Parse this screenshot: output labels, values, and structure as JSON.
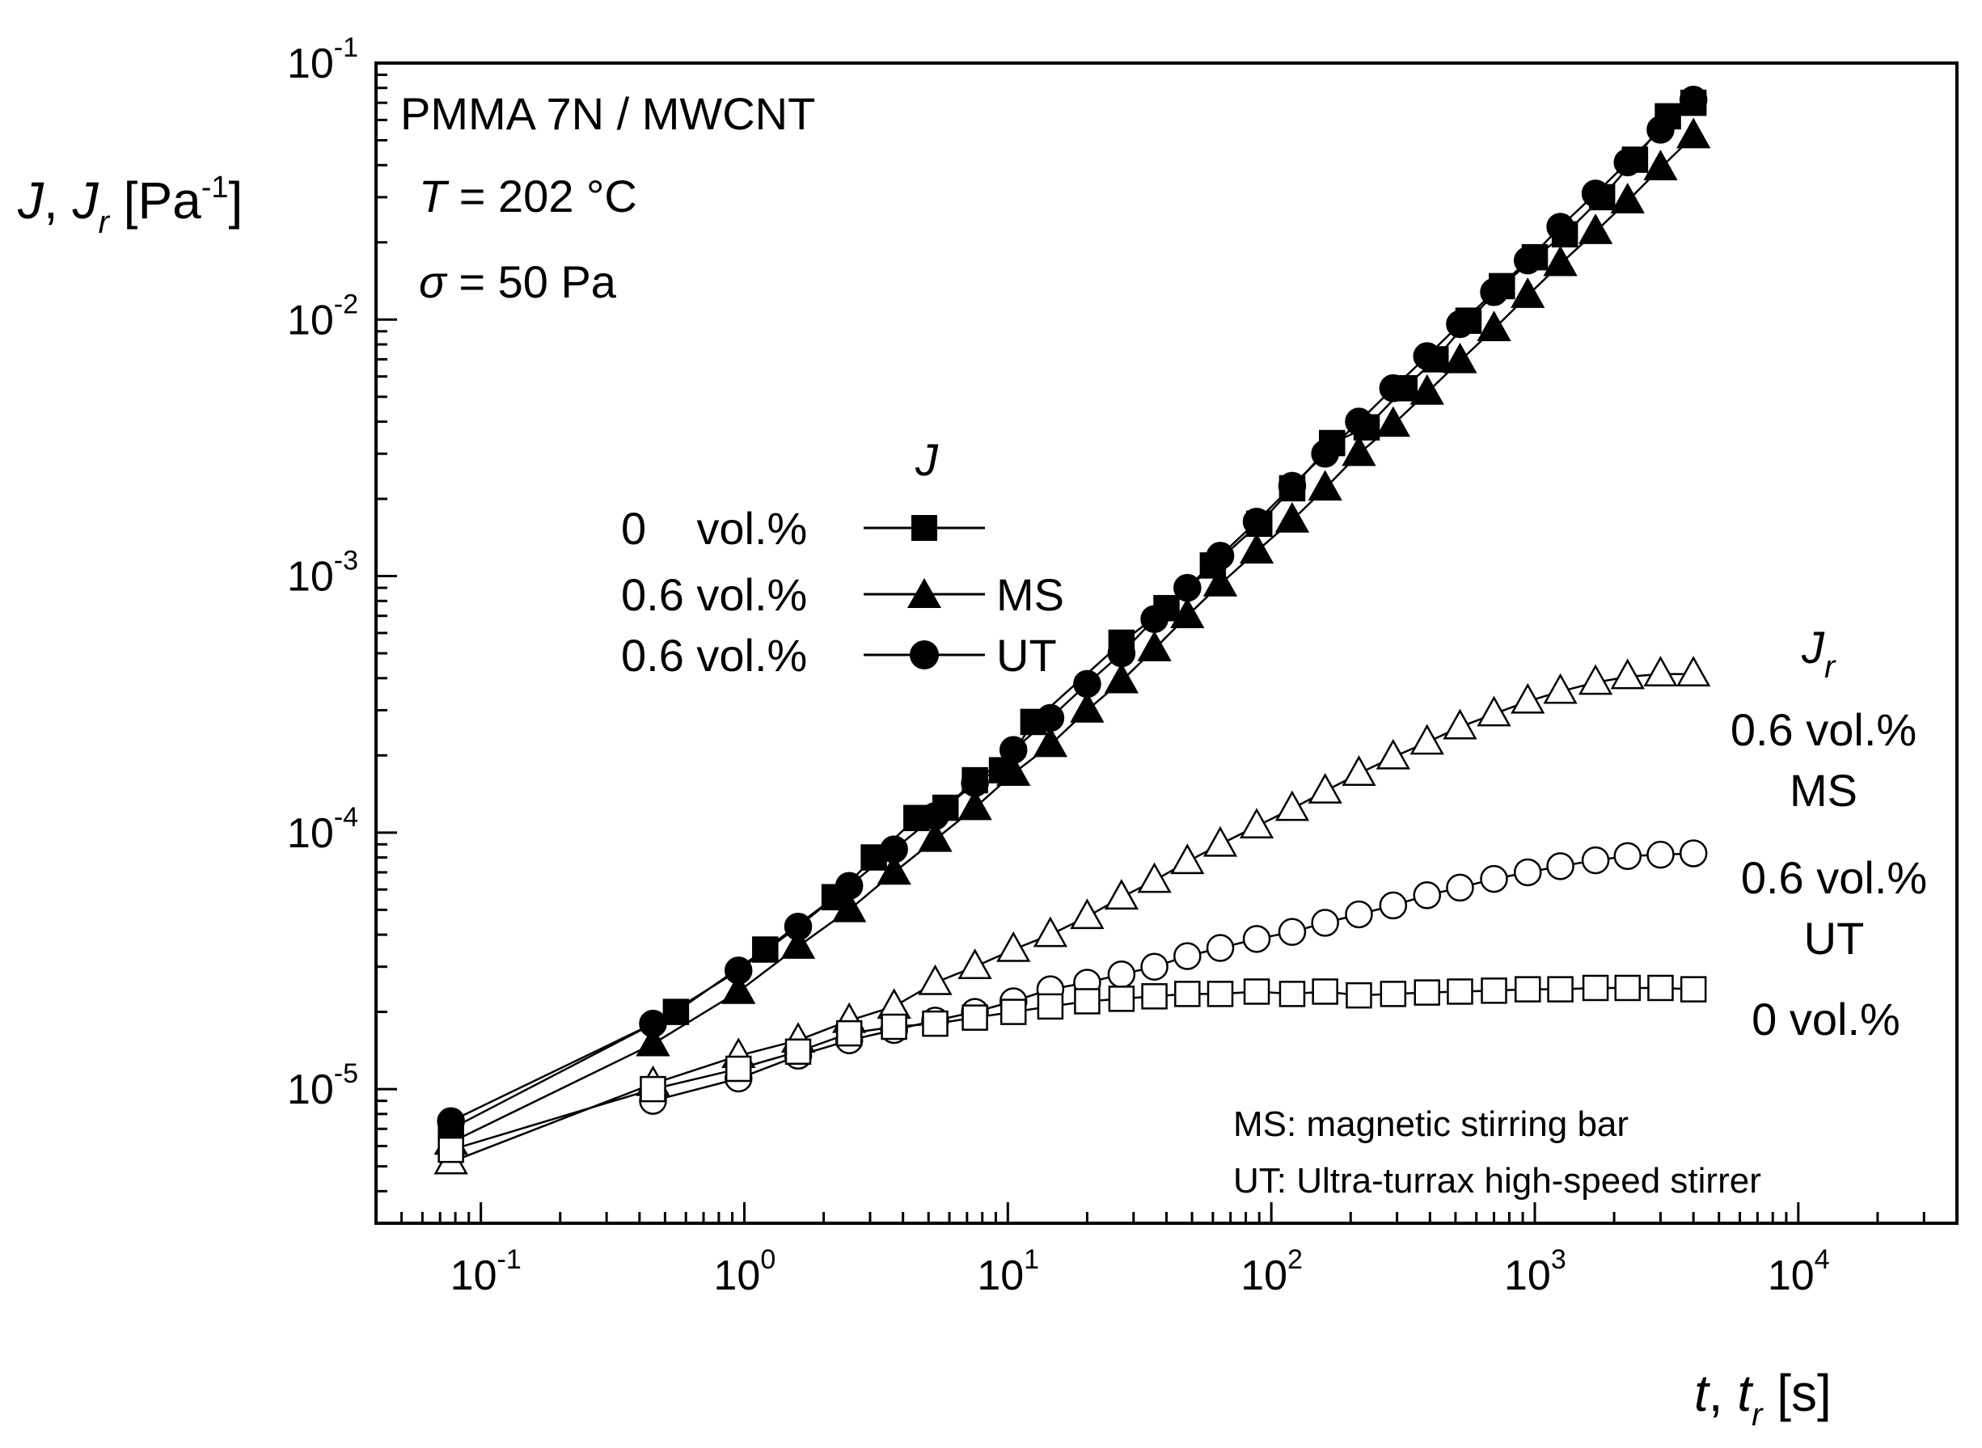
{
  "chart_data": {
    "type": "scatter",
    "xscale": "log",
    "yscale": "log",
    "xlim": [
      0.04,
      40000
    ],
    "ylim": [
      3e-06,
      0.1
    ],
    "x_ticks": [
      {
        "base": "10",
        "exp": "-1",
        "value": 0.1
      },
      {
        "base": "10",
        "exp": "0",
        "value": 1
      },
      {
        "base": "10",
        "exp": "1",
        "value": 10
      },
      {
        "base": "10",
        "exp": "2",
        "value": 100
      },
      {
        "base": "10",
        "exp": "3",
        "value": 1000
      },
      {
        "base": "10",
        "exp": "4",
        "value": 10000
      }
    ],
    "y_ticks": [
      {
        "base": "10",
        "exp": "-5",
        "value": 1e-05
      },
      {
        "base": "10",
        "exp": "-4",
        "value": 0.0001
      },
      {
        "base": "10",
        "exp": "-3",
        "value": 0.001
      },
      {
        "base": "10",
        "exp": "-2",
        "value": 0.01
      },
      {
        "base": "10",
        "exp": "-1",
        "value": 0.1
      }
    ],
    "xlabel": {
      "t1": "t",
      "sep": ", ",
      "t2": "t",
      "sub": "r",
      "unit": " [s]"
    },
    "ylabel": {
      "j1": "J",
      "sep": ", ",
      "j2": "J",
      "sub": "r",
      "unit_open": " [Pa",
      "exp": "-1",
      "unit_close": "]"
    },
    "annotations": {
      "line1": "PMMA 7N / MWCNT",
      "t_sym": "T",
      "t_val": " = 202 °C",
      "s_sym": "σ",
      "s_val": " = 50 Pa"
    },
    "legend": {
      "title": "J",
      "entries": [
        {
          "label": "0    vol.%",
          "suffix": ""
        },
        {
          "label": "0.6 vol.%",
          "suffix": "MS"
        },
        {
          "label": "0.6 vol.%",
          "suffix": "UT"
        }
      ]
    },
    "jr_labels": {
      "title": "J",
      "title_sub": "r",
      "ms_line1": "0.6 vol.%",
      "ms_line2": "MS",
      "ut_line1": "0.6 vol.%",
      "ut_line2": "UT",
      "zero_line1": "0 vol.%"
    },
    "footnotes": {
      "ms": "MS: magnetic stirring bar",
      "ut": "UT: Ultra-turrax high-speed stirrer"
    },
    "series": [
      {
        "name": "J, 0 vol.%",
        "marker": "square",
        "filled": true,
        "x": [
          0.077,
          0.55,
          1.2,
          2.2,
          3.1,
          4.5,
          5.8,
          7.5,
          9.5,
          12.5,
          27,
          40,
          60,
          90,
          120,
          170,
          230,
          320,
          420,
          560,
          750,
          1000,
          1300,
          1800,
          2400,
          3200,
          4000
        ],
        "y": [
          7e-06,
          2e-05,
          3.5e-05,
          5.6e-05,
          8e-05,
          0.000114,
          0.000125,
          0.00016,
          0.000175,
          0.00027,
          0.00055,
          0.00075,
          0.0011,
          0.0016,
          0.0022,
          0.0033,
          0.0038,
          0.0054,
          0.007,
          0.0099,
          0.0135,
          0.0175,
          0.0215,
          0.03,
          0.042,
          0.062,
          0.07
        ]
      },
      {
        "name": "J, 0.6 vol.% MS",
        "marker": "triangle",
        "filled": true,
        "x": [
          0.077,
          0.45,
          0.95,
          1.6,
          2.5,
          3.7,
          5.3,
          7.5,
          10.5,
          14.5,
          20,
          27,
          36,
          48,
          64,
          88,
          120,
          160,
          215,
          290,
          390,
          520,
          700,
          940,
          1250,
          1700,
          2250,
          3000,
          4000
        ],
        "y": [
          6.2e-06,
          1.5e-05,
          2.4e-05,
          3.6e-05,
          5e-05,
          7e-05,
          9.4e-05,
          0.000125,
          0.00017,
          0.00022,
          0.0003,
          0.00039,
          0.00052,
          0.0007,
          0.00093,
          0.00125,
          0.00165,
          0.0022,
          0.003,
          0.0039,
          0.0052,
          0.0069,
          0.0092,
          0.0124,
          0.0165,
          0.022,
          0.029,
          0.039,
          0.052
        ]
      },
      {
        "name": "J, 0.6 vol.% UT",
        "marker": "circle",
        "filled": true,
        "x": [
          0.077,
          0.45,
          0.95,
          1.6,
          2.5,
          3.7,
          5.3,
          7.5,
          10.5,
          14.5,
          20,
          27,
          36,
          48,
          64,
          88,
          120,
          160,
          215,
          290,
          390,
          520,
          700,
          940,
          1250,
          1700,
          2250,
          3000,
          4000
        ],
        "y": [
          7.5e-06,
          1.8e-05,
          2.9e-05,
          4.3e-05,
          6.2e-05,
          8.6e-05,
          0.000116,
          0.000156,
          0.00021,
          0.00028,
          0.00038,
          0.0005,
          0.00068,
          0.0009,
          0.0012,
          0.00163,
          0.00225,
          0.003,
          0.004,
          0.0054,
          0.0072,
          0.0096,
          0.0128,
          0.017,
          0.023,
          0.031,
          0.041,
          0.055,
          0.072
        ]
      },
      {
        "name": "Jr, 0.6 vol.% MS",
        "marker": "triangle",
        "filled": false,
        "x": [
          0.077,
          0.45,
          0.95,
          1.6,
          2.5,
          3.7,
          5.3,
          7.5,
          10.5,
          14.5,
          20,
          27,
          36,
          48,
          64,
          88,
          120,
          160,
          215,
          290,
          390,
          520,
          700,
          940,
          1250,
          1700,
          2250,
          3000,
          4000
        ],
        "y": [
          5.2e-06,
          1.05e-05,
          1.35e-05,
          1.55e-05,
          1.85e-05,
          2.1e-05,
          2.6e-05,
          3e-05,
          3.5e-05,
          4e-05,
          4.7e-05,
          5.6e-05,
          6.5e-05,
          7.7e-05,
          9e-05,
          0.000106,
          0.000124,
          0.000145,
          0.00017,
          0.000197,
          0.000225,
          0.000258,
          0.00029,
          0.000325,
          0.000355,
          0.000385,
          0.000405,
          0.000415,
          0.000415
        ]
      },
      {
        "name": "Jr, 0.6 vol.% UT",
        "marker": "circle",
        "filled": false,
        "x": [
          0.45,
          0.95,
          1.6,
          2.5,
          3.7,
          5.3,
          7.5,
          10.5,
          14.5,
          20,
          27,
          36,
          48,
          64,
          88,
          120,
          160,
          215,
          290,
          390,
          520,
          700,
          940,
          1250,
          1700,
          2250,
          3000,
          4000
        ],
        "y": [
          9e-06,
          1.1e-05,
          1.35e-05,
          1.55e-05,
          1.7e-05,
          1.85e-05,
          2e-05,
          2.2e-05,
          2.45e-05,
          2.6e-05,
          2.8e-05,
          3e-05,
          3.3e-05,
          3.55e-05,
          3.85e-05,
          4.1e-05,
          4.45e-05,
          4.8e-05,
          5.2e-05,
          5.7e-05,
          6.1e-05,
          6.6e-05,
          7e-05,
          7.4e-05,
          7.8e-05,
          8.1e-05,
          8.2e-05,
          8.3e-05
        ]
      },
      {
        "name": "Jr, 0 vol.%",
        "marker": "square",
        "filled": false,
        "x": [
          0.077,
          0.45,
          0.95,
          1.6,
          2.5,
          3.7,
          5.3,
          7.5,
          10.5,
          14.5,
          20,
          27,
          36,
          48,
          64,
          88,
          120,
          160,
          215,
          290,
          390,
          520,
          700,
          940,
          1250,
          1700,
          2250,
          3000,
          4000
        ],
        "y": [
          5.8e-06,
          1e-05,
          1.2e-05,
          1.4e-05,
          1.65e-05,
          1.75e-05,
          1.8e-05,
          1.9e-05,
          2e-05,
          2.1e-05,
          2.2e-05,
          2.25e-05,
          2.3e-05,
          2.35e-05,
          2.35e-05,
          2.4e-05,
          2.35e-05,
          2.4e-05,
          2.32e-05,
          2.35e-05,
          2.38e-05,
          2.4e-05,
          2.42e-05,
          2.45e-05,
          2.45e-05,
          2.48e-05,
          2.48e-05,
          2.48e-05,
          2.45e-05
        ]
      }
    ]
  }
}
